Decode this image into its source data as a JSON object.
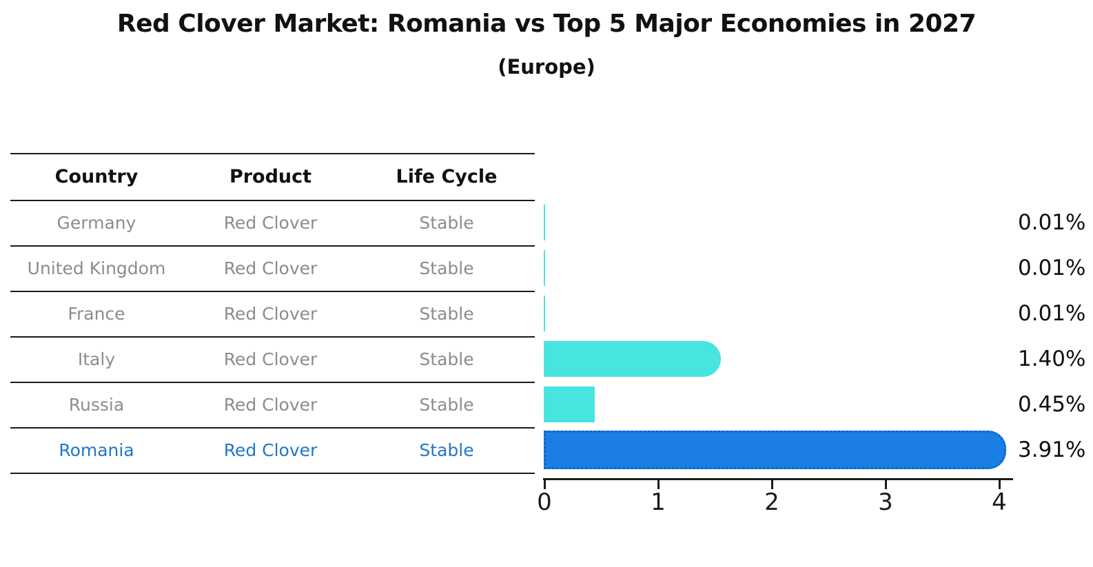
{
  "title": "Red Clover Market: Romania vs Top 5 Major Economies in 2027",
  "subtitle": "(Europe)",
  "colors": {
    "bar_color": "#48e5e0",
    "highlight_bar_color": "#1b7ee5",
    "highlight_border_color": "#0c63cf",
    "highlight_text_color": "#2177c4",
    "row_text_color": "#8c8c8c"
  },
  "table": {
    "headers": [
      "Country",
      "Product",
      "Life Cycle"
    ],
    "rows": [
      {
        "country": "Germany",
        "product": "Red Clover",
        "life_cycle": "Stable",
        "highlighted": false
      },
      {
        "country": "United Kingdom",
        "product": "Red Clover",
        "life_cycle": "Stable",
        "highlighted": false
      },
      {
        "country": "France",
        "product": "Red Clover",
        "life_cycle": "Stable",
        "highlighted": false
      },
      {
        "country": "Italy",
        "product": "Red Clover",
        "life_cycle": "Stable",
        "highlighted": false
      },
      {
        "country": "Russia",
        "product": "Red Clover",
        "life_cycle": "Stable",
        "highlighted": false
      },
      {
        "country": "Romania",
        "product": "Red Clover",
        "life_cycle": "Stable",
        "highlighted": true
      }
    ]
  },
  "chart_data": {
    "type": "bar",
    "orientation": "horizontal",
    "title": "Red Clover Market: Romania vs Top 5 Major Economies in 2027 (Europe)",
    "categories": [
      "Germany",
      "United Kingdom",
      "France",
      "Italy",
      "Russia",
      "Romania"
    ],
    "values": [
      0.01,
      0.01,
      0.01,
      1.4,
      0.45,
      3.91
    ],
    "value_labels": [
      "0.01%",
      "0.01%",
      "0.01%",
      "1.40%",
      "0.45%",
      "3.91%"
    ],
    "xlim": [
      0,
      4
    ],
    "x_ticks": [
      "0",
      "1",
      "2",
      "3",
      "4"
    ],
    "grid": false,
    "legend": false,
    "highlight_index": 5,
    "bar_color": "#48e5e0",
    "highlight_color": "#1b7ee5"
  }
}
